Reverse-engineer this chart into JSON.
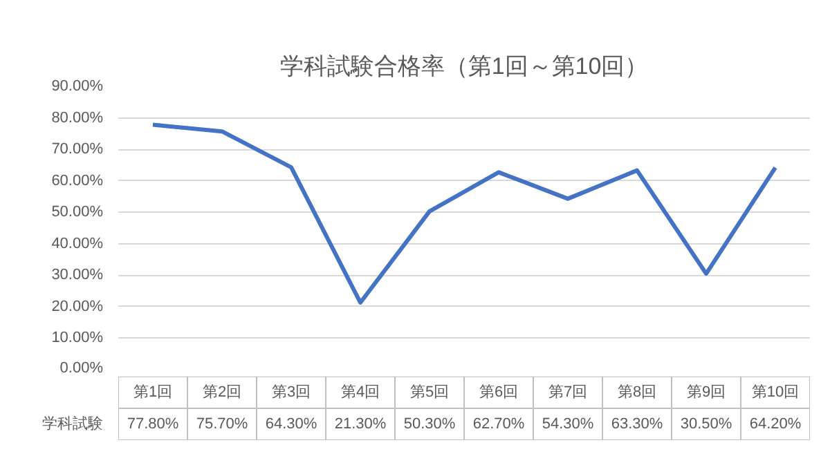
{
  "chart_data": {
    "type": "line",
    "title": "学科試験合格率（第1回～第10回）",
    "categories": [
      "第1回",
      "第2回",
      "第3回",
      "第4回",
      "第5回",
      "第6回",
      "第7回",
      "第8回",
      "第9回",
      "第10回"
    ],
    "series": [
      {
        "name": "学科試験",
        "color": "#4472c4",
        "values": [
          77.8,
          75.7,
          64.3,
          21.3,
          50.3,
          62.7,
          54.3,
          63.3,
          30.5,
          64.2
        ],
        "value_labels": [
          "77.80%",
          "75.70%",
          "64.30%",
          "21.30%",
          "50.30%",
          "62.70%",
          "54.30%",
          "63.30%",
          "30.50%",
          "64.20%"
        ]
      }
    ],
    "ylim": [
      0,
      90
    ],
    "yticks": [
      {
        "value": 0,
        "label": "0.00%"
      },
      {
        "value": 10,
        "label": "10.00%"
      },
      {
        "value": 20,
        "label": "20.00%"
      },
      {
        "value": 30,
        "label": "30.00%"
      },
      {
        "value": 40,
        "label": "40.00%"
      },
      {
        "value": 50,
        "label": "50.00%"
      },
      {
        "value": 60,
        "label": "60.00%"
      },
      {
        "value": 70,
        "label": "70.00%"
      },
      {
        "value": 80,
        "label": "80.00%"
      },
      {
        "value": 90,
        "label": "90.00%"
      }
    ],
    "grid": "y",
    "marker": "none",
    "line_style": "solid"
  }
}
